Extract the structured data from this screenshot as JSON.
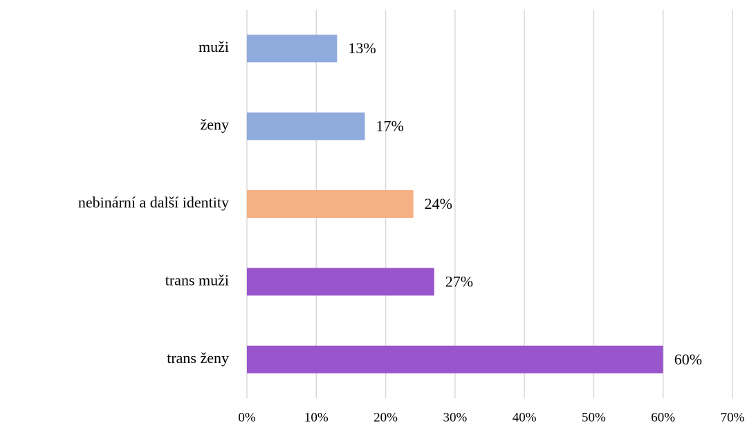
{
  "chart_data": {
    "type": "bar",
    "orientation": "horizontal",
    "categories": [
      "muži",
      "ženy",
      "nebinární a další identity",
      "trans muži",
      "trans ženy"
    ],
    "values": [
      13,
      17,
      24,
      27,
      60
    ],
    "value_labels": [
      "13%",
      "17%",
      "24%",
      "27%",
      "60%"
    ],
    "colors": [
      "#8faadc",
      "#8faadc",
      "#f4b183",
      "#9955cc",
      "#9955cc"
    ],
    "xlim": [
      0,
      70
    ],
    "xticks": [
      {
        "value": 0,
        "label": "0%"
      },
      {
        "value": 10,
        "label": "10%"
      },
      {
        "value": 20,
        "label": "20%"
      },
      {
        "value": 30,
        "label": "30%"
      },
      {
        "value": 40,
        "label": "40%"
      },
      {
        "value": 50,
        "label": "50%"
      },
      {
        "value": 60,
        "label": "60%"
      },
      {
        "value": 70,
        "label": "70%"
      }
    ],
    "grid": true
  }
}
